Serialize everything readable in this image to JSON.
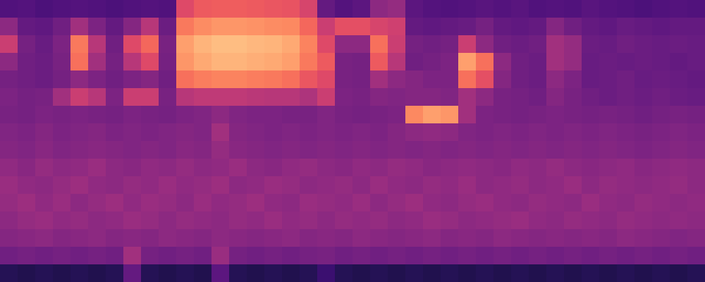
{
  "chart_data": {
    "type": "heatmap",
    "color": "magma",
    "tick_labels": false,
    "zlim": [
      0,
      100
    ],
    "z": [
      [
        25,
        26,
        24,
        25,
        26,
        25,
        24,
        25,
        26,
        25,
        60,
        65,
        66,
        66,
        65,
        64,
        63,
        58,
        30,
        26,
        28,
        40,
        42,
        28,
        26,
        25,
        26,
        27,
        26,
        27,
        25,
        26,
        25,
        27,
        26,
        25,
        24,
        25,
        26,
        25
      ],
      [
        40,
        30,
        29,
        33,
        45,
        36,
        30,
        38,
        50,
        32,
        72,
        76,
        78,
        78,
        77,
        76,
        75,
        68,
        55,
        62,
        62,
        58,
        56,
        30,
        29,
        30,
        31,
        34,
        30,
        29,
        30,
        38,
        33,
        30,
        29,
        31,
        30,
        29,
        30,
        30
      ],
      [
        55,
        34,
        31,
        36,
        72,
        50,
        33,
        60,
        68,
        35,
        80,
        84,
        86,
        86,
        85,
        84,
        82,
        74,
        60,
        40,
        40,
        70,
        55,
        34,
        33,
        34,
        55,
        40,
        33,
        32,
        33,
        45,
        42,
        32,
        31,
        33,
        32,
        31,
        32,
        31
      ],
      [
        40,
        33,
        32,
        35,
        70,
        45,
        34,
        50,
        60,
        34,
        78,
        82,
        84,
        84,
        83,
        82,
        80,
        72,
        65,
        35,
        34,
        65,
        50,
        33,
        34,
        36,
        80,
        70,
        40,
        33,
        32,
        45,
        42,
        31,
        32,
        31,
        32,
        31,
        30,
        31
      ],
      [
        34,
        33,
        32,
        34,
        40,
        36,
        33,
        36,
        38,
        33,
        70,
        73,
        74,
        74,
        73,
        72,
        70,
        64,
        60,
        35,
        34,
        45,
        40,
        38,
        36,
        36,
        70,
        62,
        38,
        33,
        32,
        40,
        36,
        31,
        32,
        33,
        31,
        32,
        31,
        30
      ],
      [
        36,
        34,
        35,
        45,
        55,
        50,
        36,
        55,
        55,
        35,
        50,
        52,
        52,
        52,
        51,
        50,
        50,
        48,
        55,
        36,
        35,
        38,
        37,
        38,
        38,
        37,
        45,
        40,
        35,
        34,
        33,
        38,
        35,
        33,
        32,
        33,
        32,
        33,
        32,
        31
      ],
      [
        35,
        34,
        36,
        35,
        36,
        35,
        34,
        36,
        35,
        34,
        36,
        37,
        40,
        37,
        36,
        36,
        35,
        35,
        37,
        35,
        34,
        35,
        36,
        75,
        80,
        78,
        45,
        36,
        35,
        34,
        35,
        36,
        35,
        34,
        35,
        34,
        33,
        34,
        35,
        34
      ],
      [
        37,
        36,
        38,
        36,
        37,
        38,
        36,
        37,
        36,
        37,
        38,
        37,
        45,
        38,
        37,
        36,
        37,
        36,
        37,
        36,
        37,
        36,
        38,
        40,
        41,
        40,
        37,
        36,
        37,
        36,
        37,
        36,
        37,
        36,
        37,
        36,
        35,
        36,
        37,
        36
      ],
      [
        38,
        37,
        39,
        37,
        38,
        39,
        38,
        37,
        38,
        37,
        39,
        38,
        42,
        39,
        38,
        37,
        38,
        37,
        38,
        37,
        38,
        37,
        38,
        37,
        38,
        37,
        38,
        37,
        38,
        37,
        38,
        37,
        38,
        37,
        38,
        37,
        36,
        37,
        38,
        37
      ],
      [
        41,
        39,
        42,
        40,
        41,
        43,
        40,
        39,
        41,
        40,
        42,
        40,
        41,
        43,
        40,
        39,
        41,
        42,
        40,
        39,
        41,
        40,
        42,
        41,
        39,
        40,
        41,
        40,
        39,
        41,
        40,
        42,
        40,
        39,
        40,
        41,
        39,
        40,
        41,
        40
      ],
      [
        43,
        41,
        40,
        42,
        44,
        41,
        40,
        42,
        41,
        43,
        41,
        42,
        44,
        40,
        41,
        43,
        42,
        40,
        41,
        42,
        40,
        43,
        41,
        40,
        42,
        41,
        43,
        40,
        41,
        42,
        40,
        41,
        43,
        40,
        42,
        41,
        40,
        41,
        42,
        40
      ],
      [
        42,
        44,
        41,
        43,
        40,
        42,
        44,
        41,
        43,
        42,
        40,
        43,
        41,
        42,
        44,
        41,
        40,
        43,
        42,
        41,
        43,
        40,
        42,
        44,
        41,
        40,
        42,
        43,
        41,
        40,
        42,
        41,
        40,
        43,
        41,
        40,
        42,
        41,
        40,
        41
      ],
      [
        40,
        42,
        43,
        41,
        42,
        40,
        41,
        43,
        42,
        40,
        42,
        41,
        40,
        42,
        41,
        43,
        41,
        42,
        40,
        42,
        41,
        42,
        40,
        41,
        43,
        42,
        40,
        41,
        42,
        43,
        41,
        40,
        42,
        41,
        40,
        42,
        41,
        40,
        41,
        40
      ],
      [
        38,
        39,
        40,
        38,
        39,
        40,
        38,
        39,
        38,
        40,
        39,
        38,
        40,
        39,
        38,
        39,
        40,
        38,
        39,
        38,
        40,
        39,
        38,
        39,
        40,
        38,
        39,
        38,
        40,
        39,
        38,
        39,
        38,
        39,
        38,
        40,
        39,
        38,
        37,
        38
      ],
      [
        33,
        34,
        33,
        34,
        33,
        34,
        33,
        45,
        34,
        33,
        34,
        33,
        43,
        34,
        33,
        34,
        33,
        34,
        35,
        33,
        34,
        33,
        34,
        33,
        34,
        33,
        34,
        33,
        34,
        33,
        34,
        33,
        34,
        33,
        34,
        33,
        34,
        33,
        34,
        33
      ],
      [
        15,
        14,
        15,
        14,
        15,
        14,
        15,
        30,
        15,
        14,
        15,
        14,
        28,
        15,
        14,
        15,
        14,
        15,
        20,
        15,
        14,
        15,
        14,
        15,
        14,
        15,
        14,
        15,
        14,
        15,
        14,
        15,
        14,
        15,
        14,
        15,
        14,
        15,
        14,
        15
      ]
    ]
  }
}
